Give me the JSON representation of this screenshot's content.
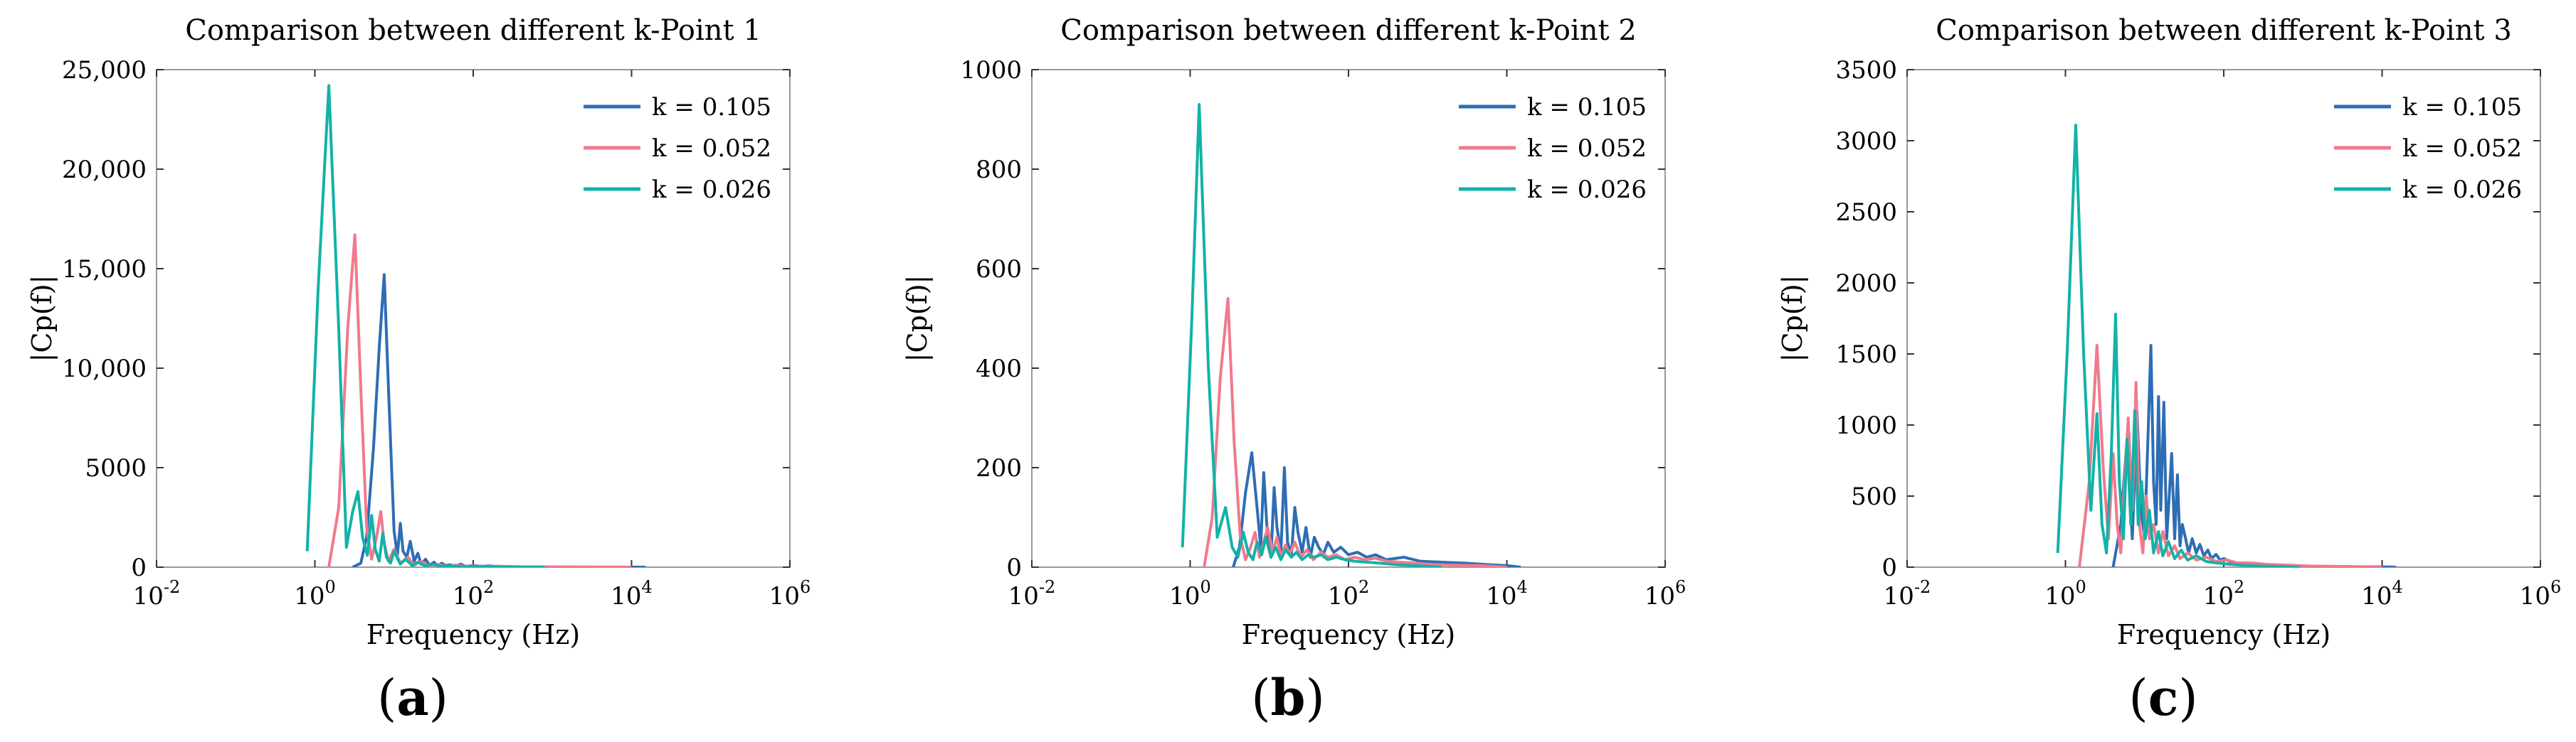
{
  "figure": {
    "subfigure_labels": [
      "a",
      "b",
      "c"
    ]
  },
  "colors": {
    "k_0_105": "#2E6DB4",
    "k_0_052": "#F07A8C",
    "k_0_026": "#12B2A8",
    "axis": "#333333",
    "grid_box": "#9a9a9a"
  },
  "chart_data": [
    {
      "type": "line",
      "title": "Comparison between different k-Point 1",
      "xlabel": "Frequency (Hz)",
      "ylabel": "|Cp(f)|",
      "xscale": "log",
      "xlim_exponents": [
        -2,
        6
      ],
      "x_ticks": [
        {
          "base": "10",
          "exp": "-2",
          "value": 0.01
        },
        {
          "base": "10",
          "exp": "0",
          "value": 1
        },
        {
          "base": "10",
          "exp": "2",
          "value": 100
        },
        {
          "base": "10",
          "exp": "4",
          "value": 10000
        },
        {
          "base": "10",
          "exp": "6",
          "value": 1000000
        }
      ],
      "ylim": [
        0,
        25000
      ],
      "y_ticks": [
        {
          "label": "0",
          "value": 0
        },
        {
          "label": "5000",
          "value": 5000
        },
        {
          "label": "10,000",
          "value": 10000
        },
        {
          "label": "15,000",
          "value": 15000
        },
        {
          "label": "20,000",
          "value": 20000
        },
        {
          "label": "25,000",
          "value": 25000
        }
      ],
      "legend_position": "top-right",
      "series": [
        {
          "name": "k = 0.105",
          "color": "#2E6DB4",
          "x": [
            3,
            3.8,
            4.5,
            5.5,
            6.5,
            7.5,
            8.5,
            10,
            11,
            12,
            13,
            14.5,
            16,
            18,
            20,
            22,
            25,
            28,
            32,
            36,
            40,
            45,
            50,
            60,
            70,
            80,
            100,
            130,
            160,
            200,
            300,
            500,
            1000,
            3000,
            10000,
            15000
          ],
          "y": [
            0,
            200,
            1500,
            6000,
            11000,
            14700,
            9000,
            1800,
            600,
            2200,
            800,
            500,
            1300,
            300,
            700,
            150,
            400,
            100,
            250,
            60,
            200,
            80,
            120,
            60,
            150,
            40,
            80,
            40,
            60,
            30,
            25,
            15,
            10,
            5,
            2,
            0
          ]
        },
        {
          "name": "k = 0.052",
          "color": "#F07A8C",
          "x": [
            1.5,
            2,
            2.6,
            3.2,
            3.8,
            4.5,
            5.2,
            6,
            6.8,
            7.5,
            8.5,
            10,
            12,
            15,
            18,
            22,
            27,
            35,
            45,
            60,
            80,
            110,
            150,
            200,
            300,
            500,
            1000,
            3000,
            10000
          ],
          "y": [
            0,
            3000,
            12000,
            16700,
            9000,
            2000,
            400,
            1500,
            2800,
            1200,
            300,
            900,
            200,
            500,
            100,
            300,
            80,
            150,
            60,
            100,
            40,
            60,
            30,
            50,
            20,
            15,
            8,
            4,
            0
          ]
        },
        {
          "name": "k = 0.026",
          "color": "#12B2A8",
          "x": [
            0.8,
            1.1,
            1.5,
            2,
            2.5,
            3,
            3.5,
            4,
            4.6,
            5.2,
            5.8,
            6.5,
            7.2,
            8,
            9,
            10,
            12,
            14,
            17,
            20,
            25,
            30,
            40,
            50,
            70,
            100,
            150,
            250,
            400,
            800
          ],
          "y": [
            800,
            14000,
            24200,
            12000,
            1000,
            2800,
            3800,
            1500,
            600,
            2600,
            900,
            300,
            1700,
            500,
            200,
            800,
            150,
            400,
            80,
            250,
            60,
            150,
            40,
            80,
            30,
            40,
            20,
            10,
            5,
            0
          ]
        }
      ]
    },
    {
      "type": "line",
      "title": "Comparison between different k-Point 2",
      "xlabel": "Frequency (Hz)",
      "ylabel": "|Cp(f)|",
      "xscale": "log",
      "xlim_exponents": [
        -2,
        6
      ],
      "x_ticks": [
        {
          "base": "10",
          "exp": "-2",
          "value": 0.01
        },
        {
          "base": "10",
          "exp": "0",
          "value": 1
        },
        {
          "base": "10",
          "exp": "2",
          "value": 100
        },
        {
          "base": "10",
          "exp": "4",
          "value": 10000
        },
        {
          "base": "10",
          "exp": "6",
          "value": 1000000
        }
      ],
      "ylim": [
        0,
        1000
      ],
      "y_ticks": [
        {
          "label": "0",
          "value": 0
        },
        {
          "label": "200",
          "value": 200
        },
        {
          "label": "400",
          "value": 400
        },
        {
          "label": "600",
          "value": 600
        },
        {
          "label": "800",
          "value": 800
        },
        {
          "label": "1000",
          "value": 1000
        }
      ],
      "legend_position": "top-right",
      "series": [
        {
          "name": "k = 0.105",
          "color": "#2E6DB4",
          "x": [
            3.5,
            4.2,
            5,
            6,
            7,
            7.8,
            8.5,
            9.5,
            10.5,
            11.5,
            12.5,
            14,
            15.5,
            17,
            19,
            21,
            23,
            26,
            29,
            33,
            37,
            42,
            48,
            55,
            65,
            80,
            100,
            130,
            170,
            220,
            300,
            500,
            800,
            1500,
            3000,
            6000,
            10000,
            15000
          ],
          "y": [
            0,
            40,
            150,
            230,
            120,
            40,
            190,
            60,
            20,
            160,
            80,
            30,
            200,
            50,
            25,
            120,
            70,
            30,
            80,
            20,
            60,
            40,
            25,
            50,
            30,
            40,
            25,
            30,
            20,
            25,
            15,
            20,
            12,
            10,
            8,
            5,
            3,
            0
          ]
        },
        {
          "name": "k = 0.052",
          "color": "#F07A8C",
          "x": [
            1.5,
            1.9,
            2.4,
            3,
            3.6,
            4.3,
            5,
            5.8,
            6.6,
            7.5,
            8.5,
            9.5,
            11,
            12.5,
            14,
            16,
            18,
            21,
            25,
            30,
            36,
            45,
            55,
            70,
            90,
            120,
            160,
            220,
            300,
            450,
            700,
            1200,
            2500,
            5000,
            10000
          ],
          "y": [
            0,
            100,
            380,
            540,
            250,
            60,
            15,
            40,
            70,
            20,
            50,
            80,
            30,
            60,
            20,
            45,
            25,
            50,
            20,
            35,
            15,
            30,
            20,
            25,
            15,
            20,
            15,
            18,
            12,
            10,
            8,
            5,
            4,
            3,
            0
          ]
        },
        {
          "name": "k = 0.026",
          "color": "#12B2A8",
          "x": [
            0.8,
            1.05,
            1.3,
            1.7,
            2.2,
            2.8,
            3.4,
            4,
            4.7,
            5.4,
            6.2,
            7,
            8,
            9,
            10.5,
            12,
            14,
            16,
            19,
            22,
            26,
            31,
            37,
            45,
            55,
            70,
            90,
            120,
            170,
            250,
            400,
            700,
            1500
          ],
          "y": [
            40,
            500,
            930,
            400,
            60,
            120,
            40,
            20,
            70,
            30,
            15,
            50,
            25,
            60,
            20,
            40,
            15,
            35,
            20,
            30,
            15,
            25,
            20,
            25,
            15,
            20,
            15,
            12,
            10,
            8,
            5,
            3,
            0
          ]
        }
      ]
    },
    {
      "type": "line",
      "title": "Comparison between different k-Point 3",
      "xlabel": "Frequency (Hz)",
      "ylabel": "|Cp(f)|",
      "xscale": "log",
      "xlim_exponents": [
        -2,
        6
      ],
      "x_ticks": [
        {
          "base": "10",
          "exp": "-2",
          "value": 0.01
        },
        {
          "base": "10",
          "exp": "0",
          "value": 1
        },
        {
          "base": "10",
          "exp": "2",
          "value": 100
        },
        {
          "base": "10",
          "exp": "4",
          "value": 10000
        },
        {
          "base": "10",
          "exp": "6",
          "value": 1000000
        }
      ],
      "ylim": [
        0,
        3500
      ],
      "y_ticks": [
        {
          "label": "0",
          "value": 0
        },
        {
          "label": "500",
          "value": 500
        },
        {
          "label": "1000",
          "value": 1000
        },
        {
          "label": "1500",
          "value": 1500
        },
        {
          "label": "2000",
          "value": 2000
        },
        {
          "label": "2500",
          "value": 2500
        },
        {
          "label": "3000",
          "value": 3000
        },
        {
          "label": "3500",
          "value": 3500
        }
      ],
      "legend_position": "top-right",
      "series": [
        {
          "name": "k = 0.105",
          "color": "#2E6DB4",
          "x": [
            4,
            5,
            6,
            7,
            8,
            9,
            10,
            11,
            12,
            13,
            14,
            15,
            16,
            17.5,
            19,
            20.5,
            22,
            24,
            26,
            28,
            30,
            33,
            36,
            40,
            45,
            50,
            56,
            63,
            70,
            80,
            90,
            100,
            120,
            150,
            200,
            300,
            500,
            1000,
            3000,
            10000,
            15000
          ],
          "y": [
            0,
            300,
            900,
            200,
            1100,
            400,
            200,
            900,
            1560,
            600,
            300,
            1200,
            400,
            1160,
            200,
            500,
            800,
            200,
            650,
            150,
            300,
            200,
            100,
            200,
            100,
            160,
            80,
            120,
            60,
            90,
            50,
            60,
            40,
            30,
            20,
            15,
            10,
            6,
            4,
            2,
            0
          ]
        },
        {
          "name": "k = 0.052",
          "color": "#F07A8C",
          "x": [
            1.5,
            2,
            2.5,
            3,
            3.5,
            4,
            4.5,
            5,
            5.6,
            6.2,
            7,
            7.8,
            8.6,
            9.5,
            10.5,
            11.5,
            13,
            15,
            17,
            20,
            24,
            28,
            35,
            45,
            60,
            80,
            110,
            150,
            220,
            350,
            600,
            1200,
            3000,
            10000
          ],
          "y": [
            0,
            600,
            1560,
            700,
            200,
            800,
            300,
            100,
            600,
            1050,
            400,
            1300,
            300,
            100,
            500,
            200,
            300,
            100,
            250,
            80,
            150,
            60,
            100,
            50,
            70,
            40,
            50,
            30,
            30,
            20,
            15,
            8,
            5,
            0
          ]
        },
        {
          "name": "k = 0.026",
          "color": "#12B2A8",
          "x": [
            0.8,
            1.05,
            1.35,
            1.7,
            2.1,
            2.5,
            2.9,
            3.3,
            3.8,
            4.3,
            4.8,
            5.4,
            6,
            6.7,
            7.5,
            8.3,
            9.2,
            10.2,
            11.5,
            13,
            15,
            17,
            20,
            24,
            29,
            35,
            45,
            60,
            80,
            120,
            200,
            400,
            900
          ],
          "y": [
            100,
            1500,
            3110,
            1500,
            400,
            1080,
            300,
            100,
            800,
            1780,
            600,
            200,
            900,
            300,
            1100,
            300,
            600,
            200,
            400,
            100,
            250,
            80,
            180,
            60,
            120,
            50,
            80,
            40,
            30,
            20,
            12,
            5,
            0
          ]
        }
      ]
    }
  ]
}
